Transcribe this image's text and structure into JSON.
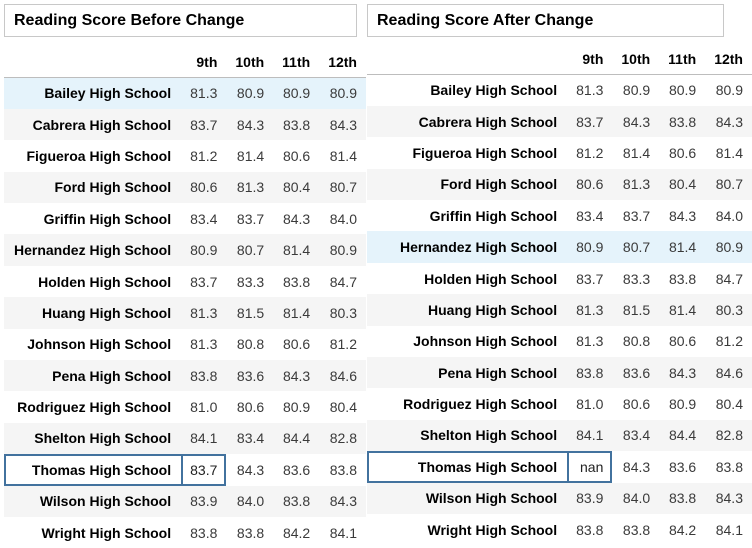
{
  "columns": [
    "9th",
    "10th",
    "11th",
    "12th"
  ],
  "before": {
    "title": "Reading Score Before Change",
    "rows": [
      {
        "school": "Bailey High School",
        "scores": [
          "81.3",
          "80.9",
          "80.9",
          "80.9"
        ]
      },
      {
        "school": "Cabrera High School",
        "scores": [
          "83.7",
          "84.3",
          "83.8",
          "84.3"
        ]
      },
      {
        "school": "Figueroa High School",
        "scores": [
          "81.2",
          "81.4",
          "80.6",
          "81.4"
        ]
      },
      {
        "school": "Ford High School",
        "scores": [
          "80.6",
          "81.3",
          "80.4",
          "80.7"
        ]
      },
      {
        "school": "Griffin High School",
        "scores": [
          "83.4",
          "83.7",
          "84.3",
          "84.0"
        ]
      },
      {
        "school": "Hernandez High School",
        "scores": [
          "80.9",
          "80.7",
          "81.4",
          "80.9"
        ]
      },
      {
        "school": "Holden High School",
        "scores": [
          "83.7",
          "83.3",
          "83.8",
          "84.7"
        ]
      },
      {
        "school": "Huang High School",
        "scores": [
          "81.3",
          "81.5",
          "81.4",
          "80.3"
        ]
      },
      {
        "school": "Johnson High School",
        "scores": [
          "81.3",
          "80.8",
          "80.6",
          "81.2"
        ]
      },
      {
        "school": "Pena High School",
        "scores": [
          "83.8",
          "83.6",
          "84.3",
          "84.6"
        ]
      },
      {
        "school": "Rodriguez High School",
        "scores": [
          "81.0",
          "80.6",
          "80.9",
          "80.4"
        ]
      },
      {
        "school": "Shelton High School",
        "scores": [
          "84.1",
          "83.4",
          "84.4",
          "82.8"
        ]
      },
      {
        "school": "Thomas High School",
        "scores": [
          "83.7",
          "84.3",
          "83.6",
          "83.8"
        ]
      },
      {
        "school": "Wilson High School",
        "scores": [
          "83.9",
          "84.0",
          "83.8",
          "84.3"
        ]
      },
      {
        "school": "Wright High School",
        "scores": [
          "83.8",
          "83.8",
          "84.2",
          "84.1"
        ]
      }
    ]
  },
  "after": {
    "title": "Reading Score After Change",
    "rows": [
      {
        "school": "Bailey High School",
        "scores": [
          "81.3",
          "80.9",
          "80.9",
          "80.9"
        ]
      },
      {
        "school": "Cabrera High School",
        "scores": [
          "83.7",
          "84.3",
          "83.8",
          "84.3"
        ]
      },
      {
        "school": "Figueroa High School",
        "scores": [
          "81.2",
          "81.4",
          "80.6",
          "81.4"
        ]
      },
      {
        "school": "Ford High School",
        "scores": [
          "80.6",
          "81.3",
          "80.4",
          "80.7"
        ]
      },
      {
        "school": "Griffin High School",
        "scores": [
          "83.4",
          "83.7",
          "84.3",
          "84.0"
        ]
      },
      {
        "school": "Hernandez High School",
        "scores": [
          "80.9",
          "80.7",
          "81.4",
          "80.9"
        ]
      },
      {
        "school": "Holden High School",
        "scores": [
          "83.7",
          "83.3",
          "83.8",
          "84.7"
        ]
      },
      {
        "school": "Huang High School",
        "scores": [
          "81.3",
          "81.5",
          "81.4",
          "80.3"
        ]
      },
      {
        "school": "Johnson High School",
        "scores": [
          "81.3",
          "80.8",
          "80.6",
          "81.2"
        ]
      },
      {
        "school": "Pena High School",
        "scores": [
          "83.8",
          "83.6",
          "84.3",
          "84.6"
        ]
      },
      {
        "school": "Rodriguez High School",
        "scores": [
          "81.0",
          "80.6",
          "80.9",
          "80.4"
        ]
      },
      {
        "school": "Shelton High School",
        "scores": [
          "84.1",
          "83.4",
          "84.4",
          "82.8"
        ]
      },
      {
        "school": "Thomas High School",
        "scores": [
          "nan",
          "84.3",
          "83.6",
          "83.8"
        ]
      },
      {
        "school": "Wilson High School",
        "scores": [
          "83.9",
          "84.0",
          "83.8",
          "84.3"
        ]
      },
      {
        "school": "Wright High School",
        "scores": [
          "83.8",
          "83.8",
          "84.2",
          "84.1"
        ]
      }
    ]
  },
  "colors": {
    "row_highlight": "#e5f3fb",
    "row_stripe": "#f5f5f5",
    "selection_border": "#42729e"
  }
}
